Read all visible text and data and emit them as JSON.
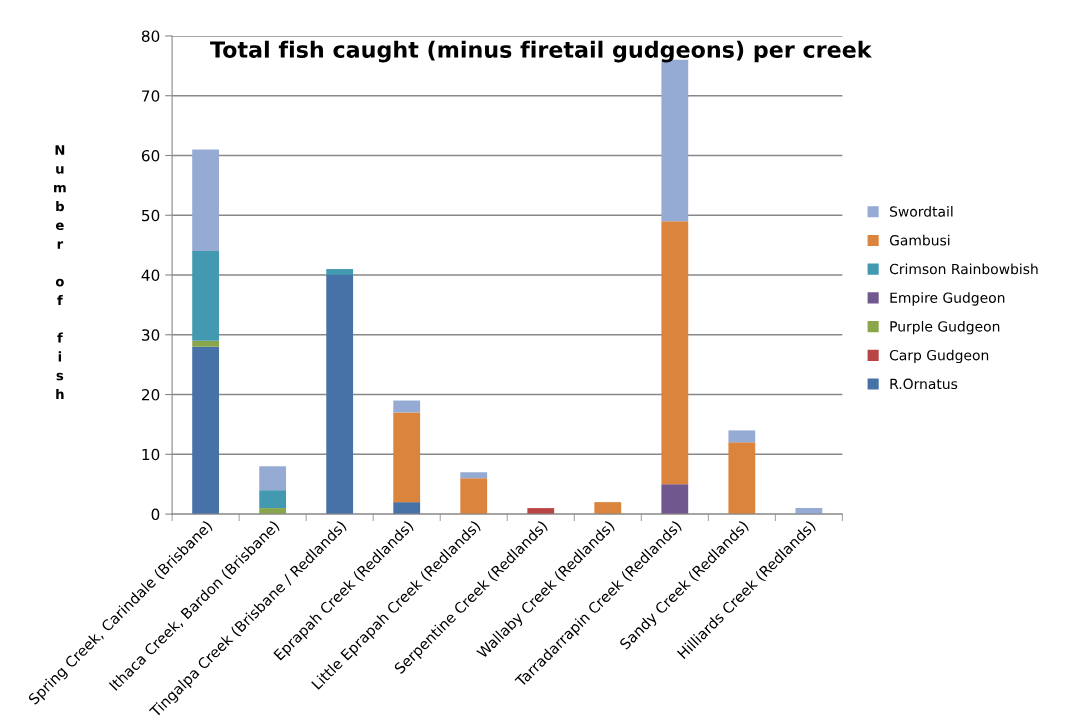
{
  "chart_data": {
    "type": "bar",
    "title": "Total fish caught (minus firetail gudgeons) per creek",
    "ylabel": "Number of fish",
    "categories": [
      "Spring Creek, Carindale (Brisbane)",
      "Ithaca Creek, Bardon (Brisbane)",
      "Tingalpa Creek (Brisbane / Redlands)",
      "Eprapah Creek (Redlands)",
      "Little Eprapah Creek (Redlands)",
      "Serpentine Creek (Redlands)",
      "Wallaby Creek (Redlands)",
      "Tarradarrapin Creek (Redlands)",
      "Sandy Creek (Redlands)",
      "Hilliards Creek (Redlands)"
    ],
    "stacked": true,
    "series": [
      {
        "name": "R.Ornatus",
        "color": "#4672a8",
        "values": [
          28,
          0,
          40,
          2,
          0,
          0,
          0,
          0,
          0,
          0
        ]
      },
      {
        "name": "Carp Gudgeon",
        "color": "#b84543",
        "values": [
          0,
          0,
          0,
          0,
          0,
          1,
          0,
          0,
          0,
          0
        ]
      },
      {
        "name": "Purple Gudgeon",
        "color": "#8aa64a",
        "values": [
          1,
          1,
          0,
          0,
          0,
          0,
          0,
          0,
          0,
          0
        ]
      },
      {
        "name": "Empire Gudgeon",
        "color": "#70588f",
        "values": [
          0,
          0,
          0,
          0,
          0,
          0,
          0,
          5,
          0,
          0
        ]
      },
      {
        "name": "Crimson Rainbowbish",
        "color": "#4399b0",
        "values": [
          15,
          3,
          1,
          0,
          0,
          0,
          0,
          0,
          0,
          0
        ]
      },
      {
        "name": "Gambusi",
        "color": "#db843d",
        "values": [
          0,
          0,
          0,
          15,
          6,
          0,
          2,
          44,
          12,
          0
        ]
      },
      {
        "name": "Swordtail",
        "color": "#95abd3",
        "values": [
          17,
          4,
          0,
          2,
          1,
          0,
          0,
          27,
          2,
          1
        ]
      }
    ],
    "ylim": [
      0,
      80
    ],
    "yticks": [
      0,
      10,
      20,
      30,
      40,
      50,
      60,
      70,
      80
    ],
    "grid": "y",
    "legend": "right"
  }
}
